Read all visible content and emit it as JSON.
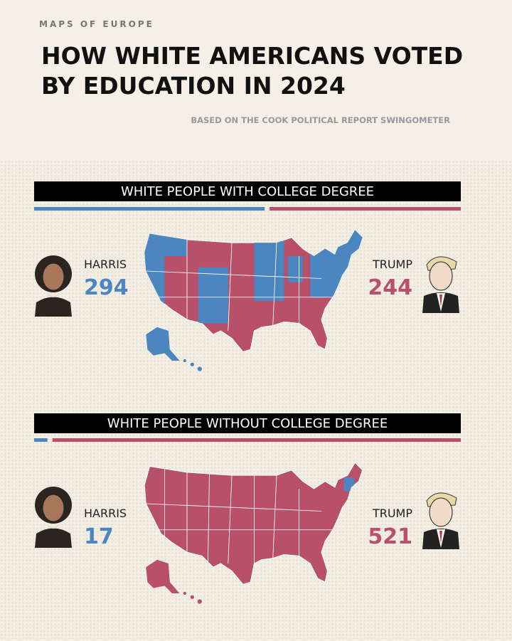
{
  "header": {
    "brand": "MAPS OF EUROPE",
    "title_lines": [
      "HOW WHITE AMERICANS VOTED",
      "BY EDUCATION IN 2024"
    ],
    "subtitle": "BASED ON THE COOK POLITICAL REPORT SWINGOMETER"
  },
  "panels": [
    {
      "heading": "WHITE PEOPLE WITH COLLEGE DEGREE",
      "harris_label": "HARRIS",
      "harris_votes": 294,
      "trump_label": "TRUMP",
      "trump_votes": 244
    },
    {
      "heading": "WHITE PEOPLE WITHOUT COLLEGE DEGREE",
      "harris_label": "HARRIS",
      "harris_votes": 17,
      "trump_label": "TRUMP",
      "trump_votes": 521
    }
  ]
}
